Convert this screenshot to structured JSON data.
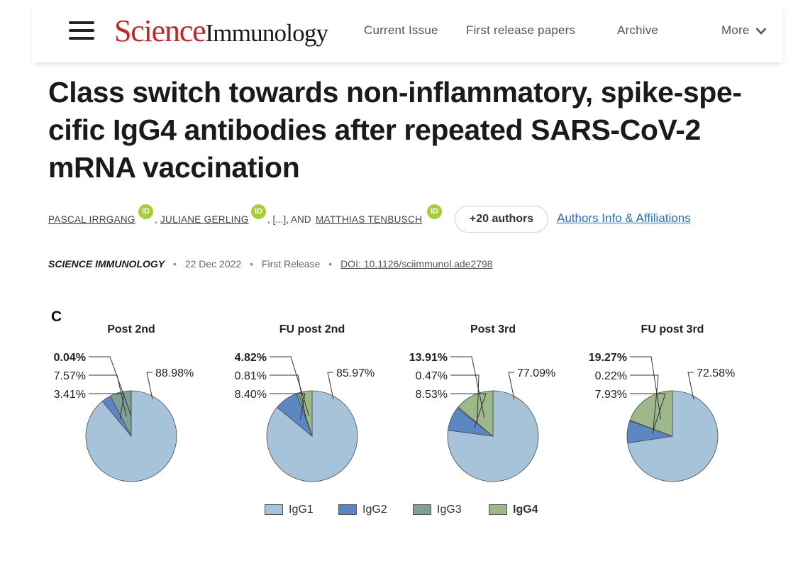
{
  "header": {
    "logo_science": "Science",
    "logo_immunology": "Immunology",
    "nav": [
      "Current Issue",
      "First release papers",
      "Archive",
      "More"
    ]
  },
  "article": {
    "title": "Class switch towards non-inflammatory, spike-spe-cific IgG4 antibodies after repeated SARS-CoV-2 mRNA vaccination",
    "authors": {
      "author1": "PASCAL IRRGANG",
      "author2": "JULIANE GERLING",
      "ellipsis": ", [...], AND",
      "author3": "MATTHIAS TENBUSCH",
      "orcid_label": "iD",
      "more_authors": "+20 authors",
      "affiliations_link": "Authors Info & Affiliations"
    },
    "meta": {
      "journal": "SCIENCE IMMUNOLOGY",
      "date": "22 Dec 2022",
      "status": "First Release",
      "doi": "DOI: 10.1126/sciimmunol.ade2798"
    }
  },
  "figure": {
    "panel_letter": "C"
  },
  "chart_data": {
    "type": "pie",
    "colors": {
      "IgG1": "#a6c3da",
      "IgG2": "#5b86c2",
      "IgG3": "#7f9f98",
      "IgG4": "#9db88a"
    },
    "legend": [
      "IgG1",
      "IgG2",
      "IgG3",
      "IgG4"
    ],
    "legend_bold": "IgG4",
    "charts": [
      {
        "title": "Post  2nd",
        "values": {
          "IgG1": 88.98,
          "IgG2": 3.41,
          "IgG3": 7.57,
          "IgG4": 0.04
        },
        "labels": {
          "IgG1": "88.98%",
          "IgG2": "3.41%",
          "IgG3": "7.57%",
          "IgG4": "0.04%"
        }
      },
      {
        "title": "FU post 2nd",
        "values": {
          "IgG1": 85.97,
          "IgG2": 8.4,
          "IgG3": 0.81,
          "IgG4": 4.82
        },
        "labels": {
          "IgG1": "85.97%",
          "IgG2": "8.40%",
          "IgG3": "0.81%",
          "IgG4": "4.82%"
        }
      },
      {
        "title": "Post 3rd",
        "values": {
          "IgG1": 77.09,
          "IgG2": 8.53,
          "IgG3": 0.47,
          "IgG4": 13.91
        },
        "labels": {
          "IgG1": "77.09%",
          "IgG2": "8.53%",
          "IgG3": "0.47%",
          "IgG4": "13.91%"
        }
      },
      {
        "title": "FU post 3rd",
        "values": {
          "IgG1": 72.58,
          "IgG2": 7.93,
          "IgG3": 0.22,
          "IgG4": 19.27
        },
        "labels": {
          "IgG1": "72.58%",
          "IgG2": "7.93%",
          "IgG3": "0.22%",
          "IgG4": "19.27%"
        }
      }
    ]
  }
}
